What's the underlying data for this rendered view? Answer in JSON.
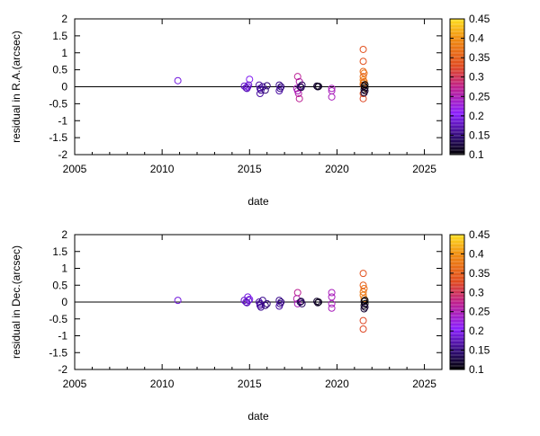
{
  "chart_data": [
    {
      "type": "scatter",
      "xlabel": "date",
      "ylabel": "residual in R.A.(arcsec)",
      "xlim": [
        2005,
        2026
      ],
      "ylim": [
        -2,
        2
      ],
      "xticks": [
        "2005",
        "2010",
        "2015",
        "2020",
        "2025"
      ],
      "yticks": [
        "2",
        "1.5",
        "1",
        "0.5",
        "0",
        "-0.5",
        "-1",
        "-1.5",
        "-2"
      ],
      "colorbar": {
        "range": [
          0.1,
          0.45
        ],
        "ticks": [
          "0.45",
          "0.4",
          "0.35",
          "0.3",
          "0.25",
          "0.2",
          "0.15",
          "0.1"
        ],
        "palette": [
          "#000000",
          "#3a0a8c",
          "#8a1fff",
          "#c0208a",
          "#e04a20",
          "#f08a10",
          "#ffe020"
        ]
      },
      "zero_line": true,
      "points": [
        [
          2010.9,
          0.18,
          0.2
        ],
        [
          2014.7,
          0.02,
          0.19
        ],
        [
          2014.8,
          -0.03,
          0.19
        ],
        [
          2014.9,
          0.0,
          0.2
        ],
        [
          2015.0,
          0.22,
          0.21
        ],
        [
          2014.85,
          -0.05,
          0.18
        ],
        [
          2014.95,
          0.05,
          0.19
        ],
        [
          2015.55,
          0.05,
          0.17
        ],
        [
          2015.6,
          -0.05,
          0.17
        ],
        [
          2015.65,
          -0.1,
          0.16
        ],
        [
          2015.6,
          -0.2,
          0.17
        ],
        [
          2015.75,
          0.0,
          0.16
        ],
        [
          2015.9,
          -0.1,
          0.15
        ],
        [
          2016.0,
          0.03,
          0.15
        ],
        [
          2016.7,
          0.05,
          0.16
        ],
        [
          2016.75,
          -0.05,
          0.16
        ],
        [
          2016.7,
          -0.12,
          0.17
        ],
        [
          2016.8,
          0.0,
          0.15
        ],
        [
          2017.75,
          0.3,
          0.27
        ],
        [
          2017.85,
          0.15,
          0.26
        ],
        [
          2017.7,
          -0.05,
          0.25
        ],
        [
          2017.75,
          -0.12,
          0.25
        ],
        [
          2017.8,
          -0.2,
          0.26
        ],
        [
          2017.85,
          -0.35,
          0.27
        ],
        [
          2017.9,
          0.0,
          0.14
        ],
        [
          2018.0,
          0.05,
          0.14
        ],
        [
          2017.95,
          -0.02,
          0.13
        ],
        [
          2018.85,
          0.02,
          0.12
        ],
        [
          2018.9,
          0.0,
          0.12
        ],
        [
          2018.95,
          0.01,
          0.11
        ],
        [
          2019.7,
          -0.05,
          0.25
        ],
        [
          2019.7,
          -0.12,
          0.25
        ],
        [
          2019.7,
          -0.3,
          0.25
        ],
        [
          2021.5,
          1.1,
          0.34
        ],
        [
          2021.5,
          0.75,
          0.34
        ],
        [
          2021.5,
          0.45,
          0.36
        ],
        [
          2021.55,
          0.4,
          0.37
        ],
        [
          2021.5,
          0.3,
          0.36
        ],
        [
          2021.5,
          0.2,
          0.38
        ],
        [
          2021.55,
          0.15,
          0.37
        ],
        [
          2021.5,
          0.1,
          0.38
        ],
        [
          2021.5,
          0.05,
          0.36
        ],
        [
          2021.5,
          -0.2,
          0.34
        ],
        [
          2021.5,
          -0.35,
          0.33
        ],
        [
          2021.55,
          0.02,
          0.11
        ],
        [
          2021.6,
          -0.03,
          0.1
        ],
        [
          2021.55,
          -0.08,
          0.11
        ],
        [
          2021.6,
          -0.12,
          0.12
        ],
        [
          2021.55,
          -0.18,
          0.12
        ],
        [
          2021.6,
          0.06,
          0.1
        ]
      ]
    },
    {
      "type": "scatter",
      "xlabel": "date",
      "ylabel": "residual in Dec.(arcsec)",
      "xlim": [
        2005,
        2026
      ],
      "ylim": [
        -2,
        2
      ],
      "xticks": [
        "2005",
        "2010",
        "2015",
        "2020",
        "2025"
      ],
      "yticks": [
        "2",
        "1.5",
        "1",
        "0.5",
        "0",
        "-0.5",
        "-1",
        "-1.5",
        "-2"
      ],
      "colorbar": {
        "range": [
          0.1,
          0.45
        ],
        "ticks": [
          "0.45",
          "0.4",
          "0.35",
          "0.3",
          "0.25",
          "0.2",
          "0.15",
          "0.1"
        ],
        "palette": [
          "#000000",
          "#3a0a8c",
          "#8a1fff",
          "#c0208a",
          "#e04a20",
          "#f08a10",
          "#ffe020"
        ]
      },
      "zero_line": true,
      "points": [
        [
          2010.9,
          0.05,
          0.2
        ],
        [
          2014.7,
          0.05,
          0.19
        ],
        [
          2014.8,
          0.0,
          0.19
        ],
        [
          2014.9,
          0.15,
          0.2
        ],
        [
          2015.0,
          0.08,
          0.21
        ],
        [
          2014.85,
          -0.02,
          0.18
        ],
        [
          2014.95,
          0.05,
          0.19
        ],
        [
          2015.55,
          0.0,
          0.17
        ],
        [
          2015.6,
          -0.05,
          0.17
        ],
        [
          2015.65,
          -0.15,
          0.16
        ],
        [
          2015.6,
          -0.1,
          0.17
        ],
        [
          2015.75,
          0.05,
          0.16
        ],
        [
          2015.9,
          -0.1,
          0.15
        ],
        [
          2016.0,
          -0.05,
          0.15
        ],
        [
          2016.7,
          0.05,
          0.16
        ],
        [
          2016.75,
          -0.05,
          0.16
        ],
        [
          2016.7,
          -0.12,
          0.17
        ],
        [
          2016.8,
          0.0,
          0.15
        ],
        [
          2017.75,
          0.28,
          0.27
        ],
        [
          2017.7,
          0.1,
          0.26
        ],
        [
          2017.75,
          -0.05,
          0.25
        ],
        [
          2017.9,
          0.0,
          0.14
        ],
        [
          2018.0,
          -0.05,
          0.14
        ],
        [
          2017.95,
          0.02,
          0.13
        ],
        [
          2018.85,
          0.02,
          0.12
        ],
        [
          2018.9,
          -0.02,
          0.12
        ],
        [
          2018.95,
          0.0,
          0.11
        ],
        [
          2019.7,
          0.28,
          0.25
        ],
        [
          2019.7,
          0.15,
          0.25
        ],
        [
          2019.7,
          -0.05,
          0.25
        ],
        [
          2019.7,
          -0.18,
          0.25
        ],
        [
          2021.5,
          0.85,
          0.34
        ],
        [
          2021.5,
          0.5,
          0.35
        ],
        [
          2021.55,
          0.4,
          0.37
        ],
        [
          2021.5,
          0.3,
          0.37
        ],
        [
          2021.5,
          0.2,
          0.38
        ],
        [
          2021.55,
          0.1,
          0.38
        ],
        [
          2021.5,
          -0.55,
          0.33
        ],
        [
          2021.5,
          -0.8,
          0.33
        ],
        [
          2021.55,
          0.02,
          0.11
        ],
        [
          2021.6,
          -0.05,
          0.1
        ],
        [
          2021.55,
          -0.1,
          0.11
        ],
        [
          2021.6,
          -0.15,
          0.12
        ],
        [
          2021.55,
          -0.2,
          0.12
        ],
        [
          2021.6,
          0.05,
          0.1
        ]
      ]
    }
  ]
}
